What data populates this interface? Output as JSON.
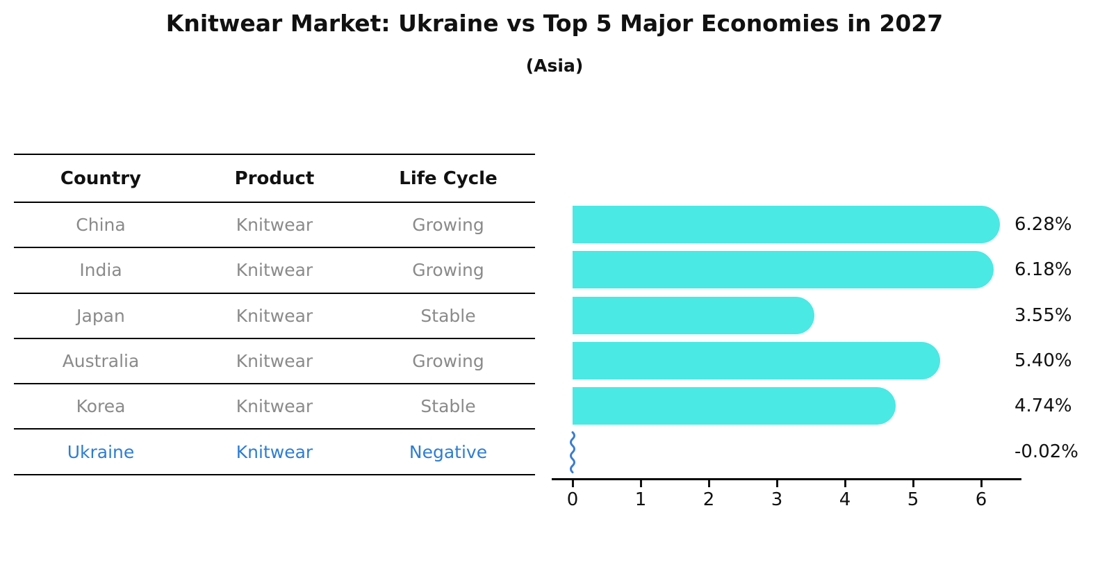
{
  "title": "Knitwear Market: Ukraine vs Top 5 Major Economies in 2027",
  "subtitle": "(Asia)",
  "table": {
    "headers": [
      "Country",
      "Product",
      "Life Cycle"
    ],
    "rows": [
      {
        "country": "China",
        "product": "Knitwear",
        "life_cycle": "Growing",
        "highlight": false
      },
      {
        "country": "India",
        "product": "Knitwear",
        "life_cycle": "Growing",
        "highlight": false
      },
      {
        "country": "Japan",
        "product": "Knitwear",
        "life_cycle": "Stable",
        "highlight": false
      },
      {
        "country": "Australia",
        "product": "Knitwear",
        "life_cycle": "Growing",
        "highlight": false
      },
      {
        "country": "Korea",
        "product": "Knitwear",
        "life_cycle": "Stable",
        "highlight": false
      },
      {
        "country": "Ukraine",
        "product": "Knitwear",
        "life_cycle": "Negative",
        "highlight": true
      }
    ],
    "text_color": "#8a8a8a",
    "highlight_color": "#2e7dd1"
  },
  "chart_data": {
    "type": "bar",
    "orientation": "horizontal",
    "title": "Knitwear Market: Ukraine vs Top 5 Major Economies in 2027",
    "subtitle": "(Asia)",
    "categories": [
      "China",
      "India",
      "Japan",
      "Australia",
      "Korea",
      "Ukraine"
    ],
    "values": [
      6.28,
      6.18,
      3.55,
      5.4,
      4.74,
      -0.02
    ],
    "value_labels": [
      "6.28%",
      "6.18%",
      "3.55%",
      "5.40%",
      "4.74%",
      "-0.02%"
    ],
    "x_ticks": [
      0,
      1,
      2,
      3,
      4,
      5,
      6
    ],
    "xlim": [
      0,
      6.6
    ],
    "grid": false,
    "legend": false,
    "bar_color": "#4ae9e4",
    "negative_marker_color": "#3b7cd0",
    "axis_color": "#000000"
  }
}
